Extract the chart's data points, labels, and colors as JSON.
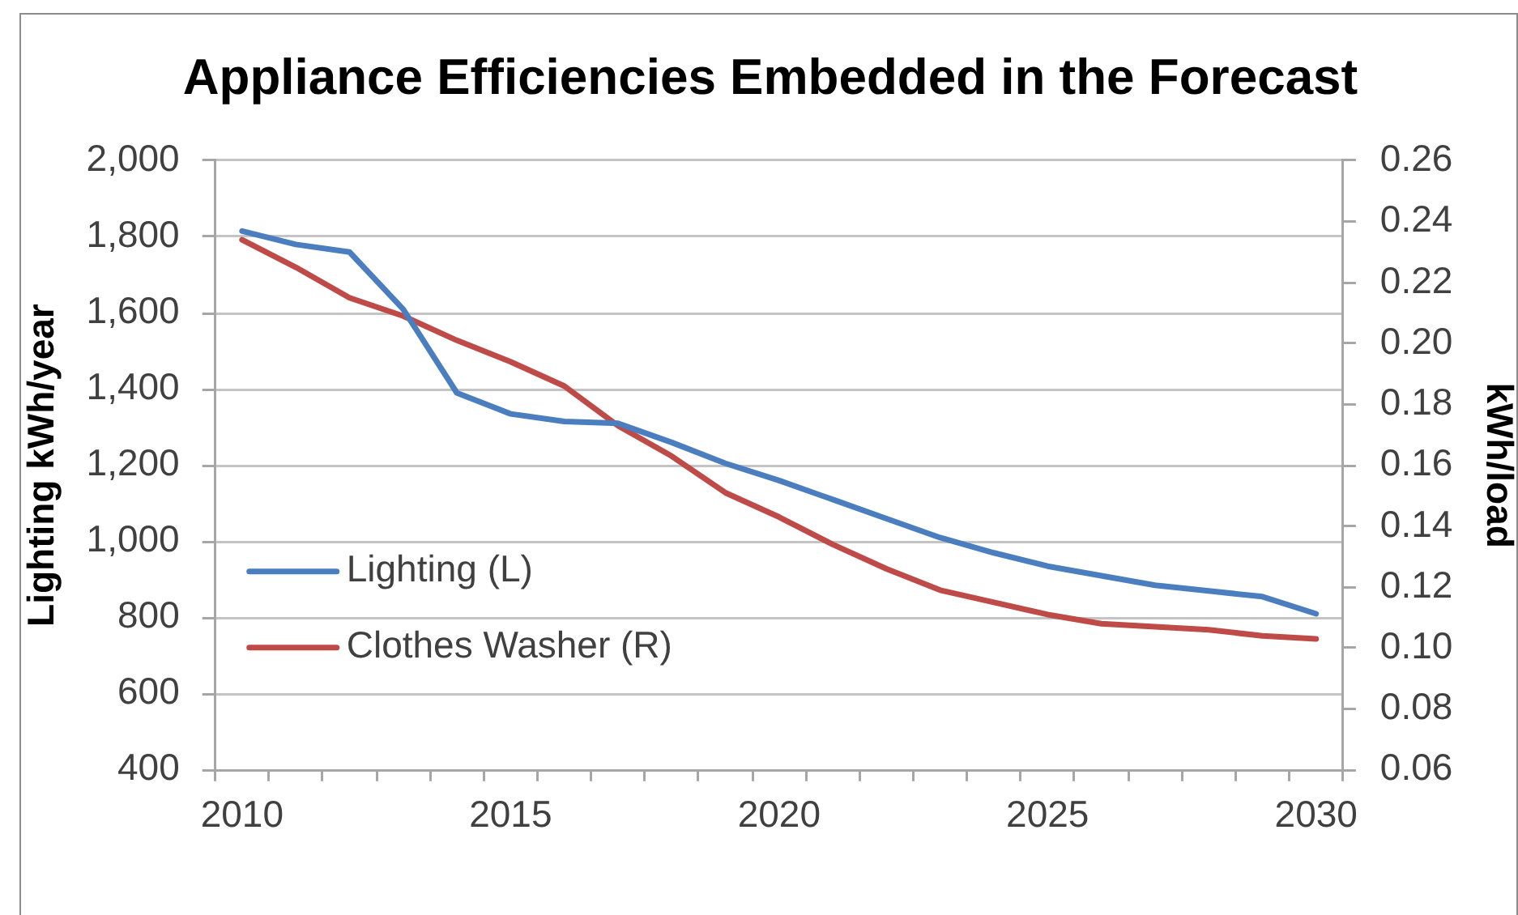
{
  "chart_data": {
    "type": "line",
    "title": "Appliance Efficiencies Embedded in the Forecast",
    "ylabel": "Lighting kWh/year",
    "y2label": "kWh/load",
    "categories": [
      "2010",
      null,
      null,
      null,
      null,
      "2015",
      null,
      null,
      null,
      null,
      "2020",
      null,
      null,
      null,
      null,
      "2025",
      null,
      null,
      null,
      null,
      "2030"
    ],
    "series": [
      {
        "name": "Lighting (L)",
        "color": "#4a7ebf",
        "values": [
          1815,
          1780,
          1760,
          1610,
          1390,
          1335,
          1315,
          1310,
          1260,
          1205,
          1160,
          1110,
          1060,
          1010,
          970,
          935,
          910,
          885,
          870,
          855,
          810
        ]
      },
      {
        "name": "Clothes Washer (R)",
        "color": "#be4b48",
        "axis": "y2",
        "values": [
          0.234,
          0.225,
          0.215,
          0.209,
          0.201,
          0.194,
          0.186,
          0.173,
          0.163,
          0.151,
          0.143,
          0.134,
          0.126,
          0.119,
          0.115,
          0.111,
          0.108,
          0.107,
          0.106,
          0.104,
          0.103
        ]
      }
    ],
    "ylim": [
      400,
      2000
    ],
    "yticks": [
      {
        "value": 400,
        "label": "400"
      },
      {
        "value": 600,
        "label": "600"
      },
      {
        "value": 800,
        "label": "800"
      },
      {
        "value": 1000,
        "label": "1,000"
      },
      {
        "value": 1200,
        "label": "1,200"
      },
      {
        "value": 1400,
        "label": "1,400"
      },
      {
        "value": 1600,
        "label": "1,600"
      },
      {
        "value": 1800,
        "label": "1,800"
      },
      {
        "value": 2000,
        "label": "2,000"
      }
    ],
    "y2lim": [
      0.06,
      0.26
    ],
    "y2ticks": [
      {
        "value": 0.06,
        "label": "0.06"
      },
      {
        "value": 0.08,
        "label": "0.08"
      },
      {
        "value": 0.1,
        "label": "0.10"
      },
      {
        "value": 0.12,
        "label": "0.12"
      },
      {
        "value": 0.14,
        "label": "0.14"
      },
      {
        "value": 0.16,
        "label": "0.16"
      },
      {
        "value": 0.18,
        "label": "0.18"
      },
      {
        "value": 0.2,
        "label": "0.20"
      },
      {
        "value": 0.22,
        "label": "0.22"
      },
      {
        "value": 0.24,
        "label": "0.24"
      },
      {
        "value": 0.26,
        "label": "0.26"
      }
    ],
    "grid": "y",
    "legend": "bottom left",
    "marker": "none",
    "line_style": "solid"
  }
}
